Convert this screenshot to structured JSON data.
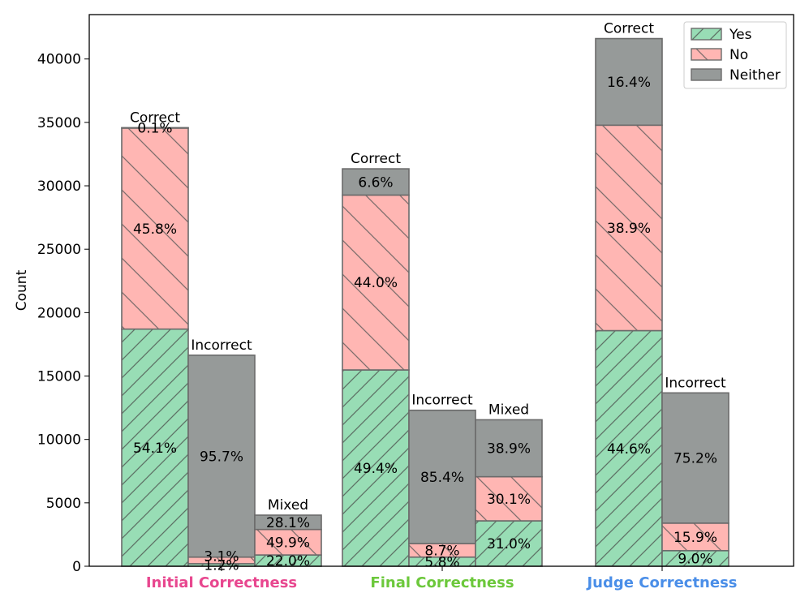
{
  "chart_data": {
    "type": "bar",
    "stacked": true,
    "ylabel": "Count",
    "ylim": [
      0,
      43500
    ],
    "yticks": [
      0,
      5000,
      10000,
      15000,
      20000,
      25000,
      30000,
      35000,
      40000
    ],
    "legend": {
      "placement": "top-right",
      "entries": [
        "Yes",
        "No",
        "Neither"
      ]
    },
    "segment_colors": {
      "Yes": "#98ddb5",
      "No": "#ffb6b3",
      "Neither": "#969a99"
    },
    "groups": [
      {
        "label": "Initial Correctness",
        "label_color": "#e8478f",
        "bars": [
          {
            "label": "Correct",
            "segments": [
              {
                "name": "Yes",
                "value": 18700,
                "pct": "54.1%"
              },
              {
                "name": "No",
                "value": 15850,
                "pct": "45.8%"
              },
              {
                "name": "Neither",
                "value": 35,
                "pct": "0.1%"
              }
            ]
          },
          {
            "label": "Incorrect",
            "segments": [
              {
                "name": "Yes",
                "value": 200,
                "pct": "1.2%"
              },
              {
                "name": "No",
                "value": 520,
                "pct": "3.1%"
              },
              {
                "name": "Neither",
                "value": 15920,
                "pct": "95.7%"
              }
            ]
          },
          {
            "label": "Mixed",
            "segments": [
              {
                "name": "Yes",
                "value": 890,
                "pct": "22.0%"
              },
              {
                "name": "No",
                "value": 2010,
                "pct": "49.9%"
              },
              {
                "name": "Neither",
                "value": 1130,
                "pct": "28.1%"
              }
            ]
          }
        ]
      },
      {
        "label": "Final Correctness",
        "label_color": "#6cc83b",
        "bars": [
          {
            "label": "Correct",
            "segments": [
              {
                "name": "Yes",
                "value": 15480,
                "pct": "49.4%"
              },
              {
                "name": "No",
                "value": 13790,
                "pct": "44.0%"
              },
              {
                "name": "Neither",
                "value": 2070,
                "pct": "6.6%"
              }
            ]
          },
          {
            "label": "Incorrect",
            "segments": [
              {
                "name": "Yes",
                "value": 720,
                "pct": "5.8%"
              },
              {
                "name": "No",
                "value": 1070,
                "pct": "8.7%"
              },
              {
                "name": "Neither",
                "value": 10510,
                "pct": "85.4%"
              }
            ]
          },
          {
            "label": "Mixed",
            "segments": [
              {
                "name": "Yes",
                "value": 3580,
                "pct": "31.0%"
              },
              {
                "name": "No",
                "value": 3480,
                "pct": "30.1%"
              },
              {
                "name": "Neither",
                "value": 4490,
                "pct": "38.9%"
              }
            ]
          }
        ]
      },
      {
        "label": "Judge Correctness",
        "label_color": "#4a8ee8",
        "bars": [
          {
            "label": "Correct",
            "segments": [
              {
                "name": "Yes",
                "value": 18580,
                "pct": "44.6%"
              },
              {
                "name": "No",
                "value": 16200,
                "pct": "38.9%"
              },
              {
                "name": "Neither",
                "value": 6830,
                "pct": "16.4%"
              }
            ]
          },
          {
            "label": "Incorrect",
            "segments": [
              {
                "name": "Yes",
                "value": 1230,
                "pct": "9.0%"
              },
              {
                "name": "No",
                "value": 2170,
                "pct": "15.9%"
              },
              {
                "name": "Neither",
                "value": 10270,
                "pct": "75.2%"
              }
            ]
          }
        ]
      }
    ]
  }
}
